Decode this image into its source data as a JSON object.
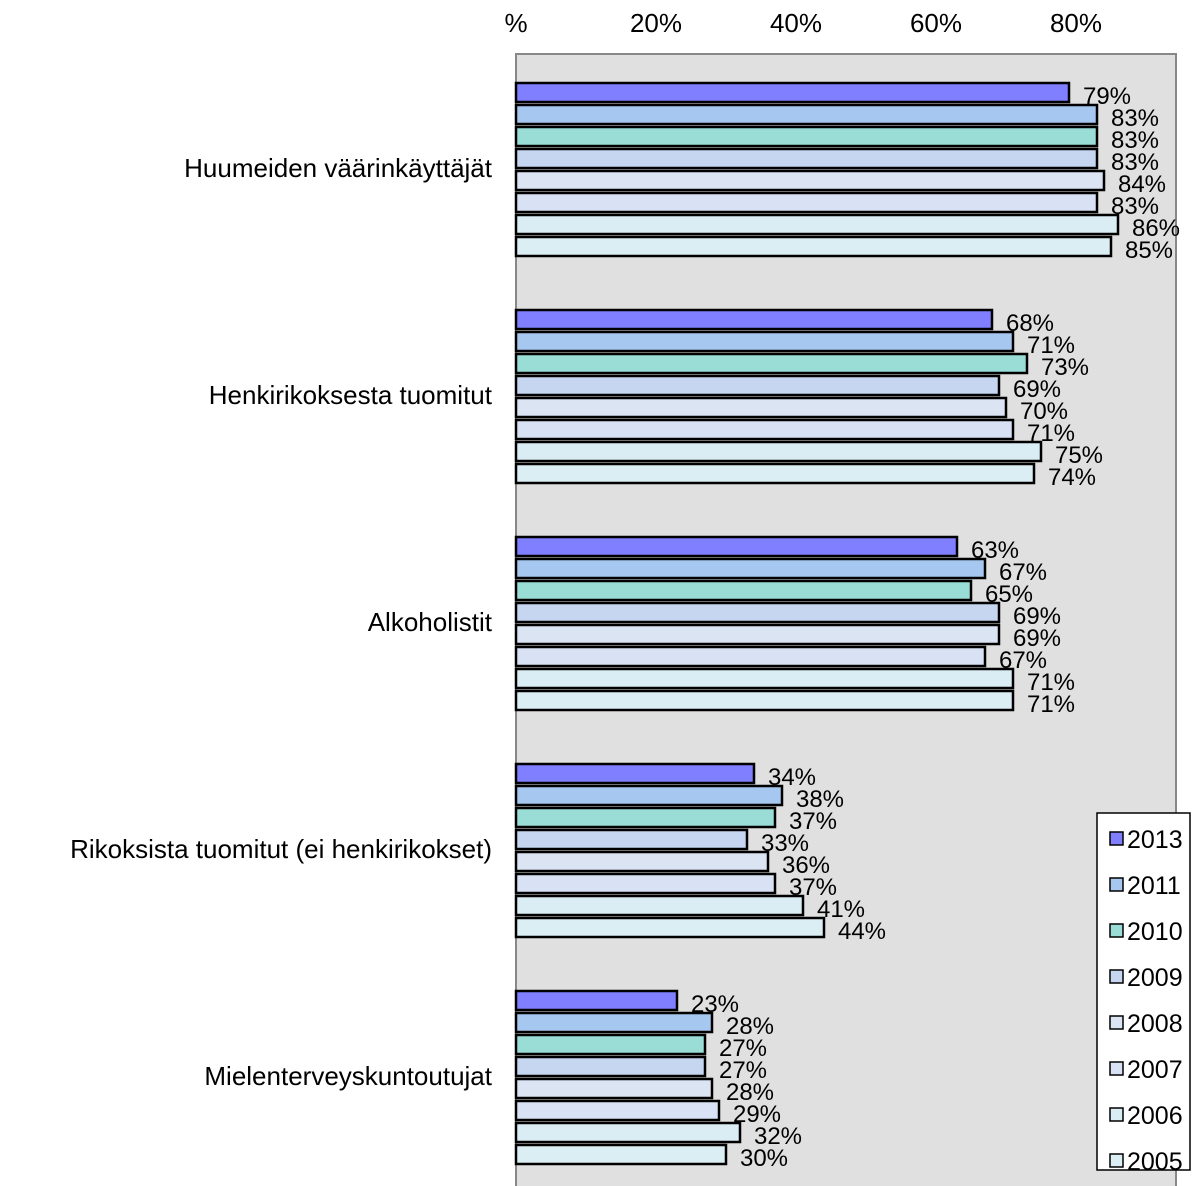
{
  "chart_data": {
    "type": "bar",
    "orientation": "horizontal",
    "title": "",
    "xlabel": "",
    "ylabel": "",
    "xlim": [
      0,
      96
    ],
    "x_ticks": [
      {
        "value": 0,
        "label": "%"
      },
      {
        "value": 20,
        "label": "20%"
      },
      {
        "value": 40,
        "label": "40%"
      },
      {
        "value": 60,
        "label": "60%"
      },
      {
        "value": 80,
        "label": "80%"
      }
    ],
    "x_axis_position": "top",
    "grid": false,
    "plot_background": "#e0e0e0",
    "legend_position": "bottom-right",
    "categories": [
      "Huumeiden väärinkäyttäjät",
      "Henkirikoksesta tuomitut",
      "Alkoholistit",
      "Rikoksista tuomitut (ei henkirikokset)",
      "Mielenterveyskuntoutujat"
    ],
    "series": [
      {
        "name": "2013",
        "color": "#7f7fff",
        "values": [
          79,
          68,
          63,
          34,
          23
        ],
        "labels": [
          "79%",
          "68%",
          "63%",
          "34%",
          "23%"
        ]
      },
      {
        "name": "2011",
        "color": "#a6c8f0",
        "values": [
          83,
          71,
          67,
          38,
          28
        ],
        "labels": [
          "83%",
          "71%",
          "67%",
          "38%",
          "28%"
        ]
      },
      {
        "name": "2010",
        "color": "#99ddd6",
        "values": [
          83,
          73,
          65,
          37,
          27
        ],
        "labels": [
          "83%",
          "73%",
          "65%",
          "37%",
          "27%"
        ]
      },
      {
        "name": "2009",
        "color": "#c6d6f0",
        "values": [
          83,
          69,
          69,
          33,
          27
        ],
        "labels": [
          "83%",
          "69%",
          "69%",
          "33%",
          "27%"
        ]
      },
      {
        "name": "2008",
        "color": "#dae4f2",
        "values": [
          84,
          70,
          69,
          36,
          28
        ],
        "labels": [
          "84%",
          "70%",
          "69%",
          "36%",
          "28%"
        ]
      },
      {
        "name": "2007",
        "color": "#d8e2f4",
        "values": [
          83,
          71,
          67,
          37,
          29
        ],
        "labels": [
          "83%",
          "71%",
          "67%",
          "37%",
          "29%"
        ]
      },
      {
        "name": "2006",
        "color": "#daecf4",
        "values": [
          86,
          75,
          71,
          41,
          32
        ],
        "labels": [
          "86%",
          "75%",
          "71%",
          "41%",
          "32%"
        ]
      },
      {
        "name": "2005",
        "color": "#dbeef4",
        "values": [
          85,
          74,
          71,
          44,
          30
        ],
        "labels": [
          "85%",
          "74%",
          "71%",
          "44%",
          "30%"
        ]
      }
    ]
  }
}
